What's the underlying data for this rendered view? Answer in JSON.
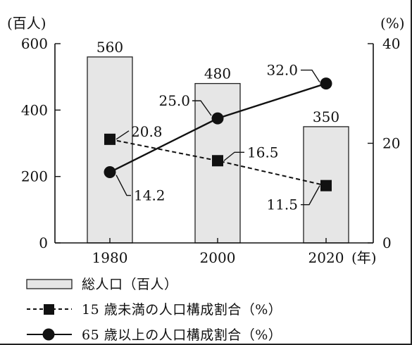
{
  "chart_data": {
    "type": "bar+line",
    "categories": [
      "1980",
      "2000",
      "2020"
    ],
    "x_unit_label": "(年)",
    "left_axis": {
      "label": "(百人)",
      "ticks": [
        "0",
        "200",
        "400",
        "600"
      ],
      "ylim": [
        0,
        600
      ]
    },
    "right_axis": {
      "label": "(%)",
      "ticks": [
        "0",
        "20",
        "40"
      ],
      "ylim": [
        0,
        40
      ]
    },
    "bars": {
      "name": "総人口（百人）",
      "values": [
        560,
        480,
        350
      ],
      "labels": [
        "560",
        "480",
        "350"
      ],
      "color": "#e6e6e6"
    },
    "series": [
      {
        "name": "15 歳未満の人口構成割合（%）",
        "values": [
          20.8,
          16.5,
          11.5
        ],
        "labels": [
          "20.8",
          "16.5",
          "11.5"
        ],
        "marker": "square",
        "line": "dashed"
      },
      {
        "name": "65 歳以上の人口構成割合（%）",
        "values": [
          14.2,
          25.0,
          32.0
        ],
        "labels": [
          "14.2",
          "25.0",
          "32.0"
        ],
        "marker": "circle",
        "line": "solid"
      }
    ],
    "grid": false
  },
  "legend": {
    "bar_label": "総人口（百人）",
    "under15_label": "15 歳未満の人口構成割合（%）",
    "over65_label": "65 歳以上の人口構成割合（%）"
  }
}
